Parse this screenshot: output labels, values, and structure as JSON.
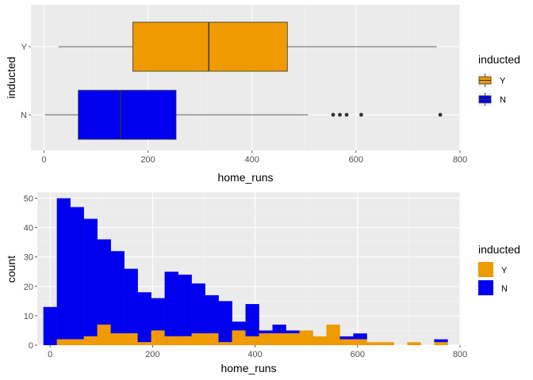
{
  "chart_data": [
    {
      "type": "boxplot",
      "xlabel": "home_runs",
      "ylabel": "inducted",
      "xlim": [
        -25,
        800
      ],
      "xticks": [
        0,
        200,
        400,
        600,
        800
      ],
      "grid": true,
      "legend": {
        "title": "inducted",
        "placement": "right",
        "entries": [
          "Y",
          "N"
        ]
      },
      "categories": [
        "Y",
        "N"
      ],
      "colors": {
        "Y": "#ee9a00",
        "N": "#0000ee"
      },
      "boxes": [
        {
          "name": "Y",
          "min": 28,
          "q1": 171,
          "median": 317,
          "q3": 468,
          "max": 755,
          "outliers": []
        },
        {
          "name": "N",
          "min": 2,
          "q1": 66,
          "median": 147,
          "q3": 254,
          "max": 508,
          "outliers": [
            556,
            569,
            582,
            610,
            762
          ]
        }
      ]
    },
    {
      "type": "histogram",
      "xlabel": "home_runs",
      "ylabel": "count",
      "xlim": [
        -25,
        800
      ],
      "xticks": [
        0,
        200,
        400,
        600,
        800
      ],
      "ylim": [
        0,
        52
      ],
      "yticks": [
        0,
        10,
        20,
        30,
        40,
        50
      ],
      "grid": true,
      "stacked": true,
      "legend": {
        "title": "inducted",
        "placement": "right",
        "entries": [
          "Y",
          "N"
        ]
      },
      "bin_width": 26.3,
      "bin_start": -13.15,
      "colors": {
        "Y": "#ee9a00",
        "N": "#0000ee"
      },
      "series": [
        {
          "name": "Y",
          "values": [
            0,
            2,
            2,
            3,
            7,
            4,
            4,
            1,
            5,
            3,
            3,
            4,
            4,
            1,
            5,
            3,
            4,
            4,
            4,
            5,
            3,
            7,
            2,
            2,
            1,
            1,
            0,
            1,
            0,
            1
          ]
        },
        {
          "name": "N",
          "values": [
            13,
            48,
            45,
            40,
            29,
            28,
            22,
            17,
            11,
            22,
            21,
            17,
            13,
            14,
            3,
            11,
            1,
            3,
            1,
            0,
            0,
            0,
            1,
            2,
            0,
            0,
            0,
            0,
            0,
            1
          ]
        }
      ]
    }
  ]
}
